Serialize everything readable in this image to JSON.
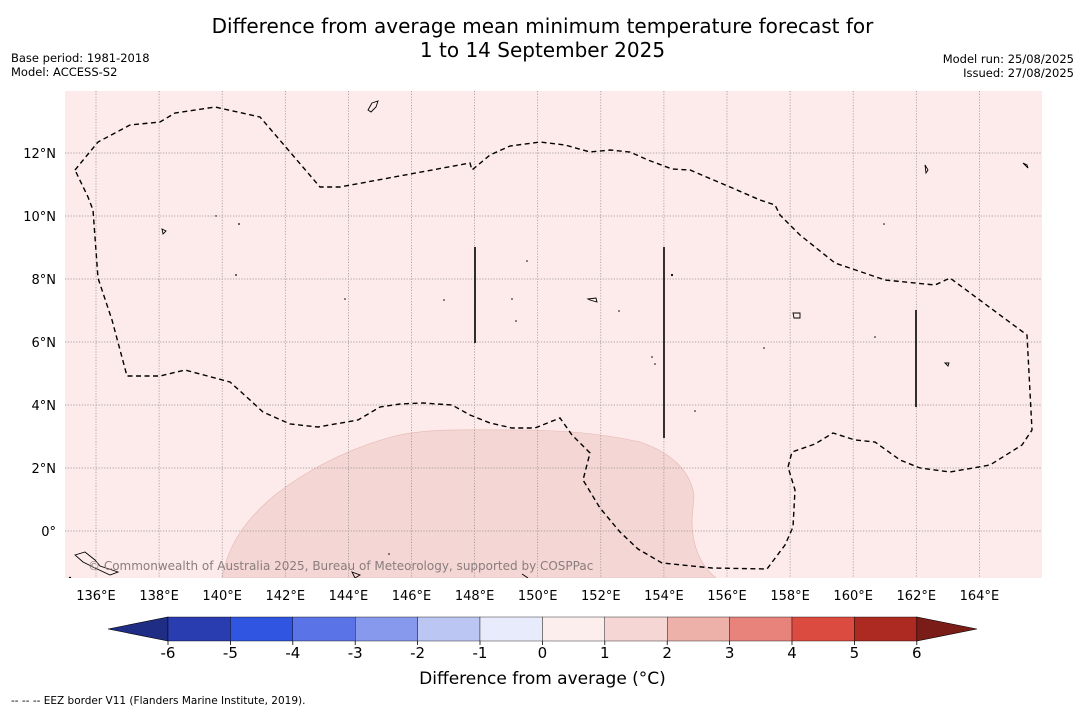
{
  "title_line1": "Difference from average mean minimum temperature forecast for",
  "title_line2": "1 to 14 September 2025",
  "base_period": "Base period: 1981-2018",
  "model": "Model: ACCESS-S2",
  "model_run": "Model run: 25/08/2025",
  "issued": "Issued: 27/08/2025",
  "lon_ticks": [
    "136°E",
    "138°E",
    "140°E",
    "142°E",
    "144°E",
    "146°E",
    "148°E",
    "150°E",
    "152°E",
    "154°E",
    "156°E",
    "158°E",
    "160°E",
    "162°E",
    "164°E"
  ],
  "lat_ticks": [
    "12°N",
    "10°N",
    "8°N",
    "6°N",
    "4°N",
    "2°N",
    "0°"
  ],
  "copyright": "© Commonwealth of Australia 2025, Bureau of Meteorology, supported by COSPPac",
  "colorbar": {
    "title": "Difference from average (°C)",
    "labels": [
      "-6",
      "-5",
      "-4",
      "-3",
      "-2",
      "-1",
      "0",
      "1",
      "2",
      "3",
      "4",
      "5",
      "6"
    ],
    "colors": [
      "#2a3db0",
      "#3055e0",
      "#5a73e6",
      "#8799ec",
      "#bcc6f3",
      "#e8ebfb",
      "#fdeeee",
      "#f6d6d4",
      "#eeb1aa",
      "#e8837b",
      "#dc4b40",
      "#ad2a22"
    ],
    "under_color": "#1f2d85",
    "over_color": "#7a1d18"
  },
  "map_colors": {
    "background": "#fcebea",
    "warm_region": "#f4d6d4"
  },
  "footnote": "-- -- -- EEZ border V11 (Flanders Marine Institute, 2019)."
}
